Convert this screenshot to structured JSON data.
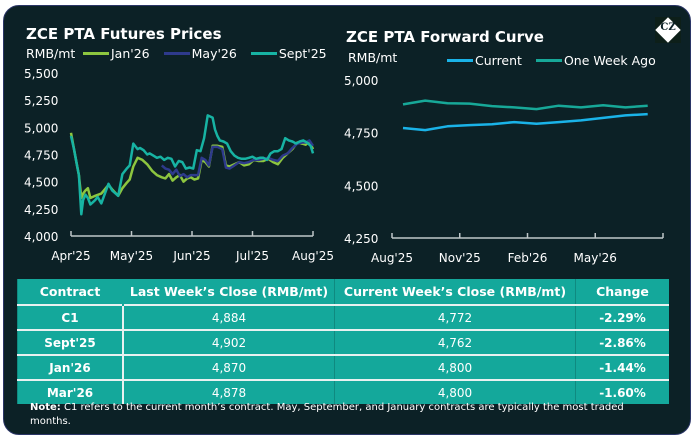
{
  "logo": {
    "text": "CZ"
  },
  "left_chart": {
    "title": "ZCE PTA Futures Prices",
    "unit": "RMB/mt"
  },
  "right_chart": {
    "title": "ZCE PTA Forward Curve",
    "unit": "RMB/mt"
  },
  "chart_data": [
    {
      "type": "line",
      "title": "ZCE PTA Futures Prices",
      "ylabel": "RMB/mt",
      "ylim": [
        4000,
        5500
      ],
      "yticks": [
        "4,000",
        "4,250",
        "4,500",
        "4,750",
        "5,000",
        "5,250",
        "5,500"
      ],
      "ytick_values": [
        4000,
        4250,
        4500,
        4750,
        5000,
        5250,
        5500
      ],
      "xticks": [
        "Apr'25",
        "May'25",
        "Jun'25",
        "Jul'25",
        "Aug'25"
      ],
      "xlim": [
        0,
        4
      ],
      "legend": "top",
      "grid": false,
      "series": [
        {
          "name": "Jan'26",
          "color": "#8dc63f",
          "x": [
            0.0,
            0.05,
            0.1,
            0.13,
            0.17,
            0.2,
            0.24,
            0.28,
            0.32,
            0.36,
            0.4,
            0.5,
            0.62,
            0.68,
            0.78,
            0.85,
            0.92,
            0.97,
            1.03,
            1.1,
            1.18,
            1.26,
            1.34,
            1.42,
            1.5,
            1.56,
            1.62,
            1.68,
            1.74,
            1.8,
            1.86,
            1.92,
            1.98,
            2.04,
            2.1,
            2.16,
            2.22,
            2.28,
            2.34,
            2.42,
            2.5,
            2.56,
            2.62,
            2.7,
            2.78,
            2.86,
            2.94,
            3.02,
            3.1,
            3.18,
            3.26,
            3.34,
            3.42,
            3.5,
            3.58,
            3.66,
            3.74,
            3.82,
            3.88,
            3.94,
            4.0
          ],
          "values": [
            4950,
            4800,
            4650,
            4560,
            4350,
            4390,
            4420,
            4440,
            4350,
            4360,
            4370,
            4390,
            4470,
            4430,
            4370,
            4440,
            4490,
            4520,
            4640,
            4720,
            4700,
            4660,
            4600,
            4560,
            4540,
            4530,
            4570,
            4510,
            4540,
            4560,
            4500,
            4530,
            4540,
            4520,
            4530,
            4700,
            4680,
            4640,
            4830,
            4830,
            4820,
            4650,
            4640,
            4660,
            4680,
            4650,
            4660,
            4700,
            4690,
            4690,
            4710,
            4680,
            4660,
            4720,
            4760,
            4800,
            4860,
            4850,
            4840,
            4870,
            4800
          ]
        },
        {
          "name": "May'26",
          "color": "#2e3a8c",
          "x": [
            1.5,
            1.56,
            1.62,
            1.68,
            1.74,
            1.8,
            1.86,
            1.92,
            1.98,
            2.04,
            2.1,
            2.16,
            2.22,
            2.28,
            2.34,
            2.42,
            2.5,
            2.56,
            2.62,
            2.7,
            2.78,
            2.86,
            2.94,
            3.02,
            3.1,
            3.18,
            3.26,
            3.34,
            3.42,
            3.5,
            3.58,
            3.66,
            3.74,
            3.82,
            3.88,
            3.94,
            4.0
          ],
          "values": [
            4650,
            4620,
            4610,
            4570,
            4610,
            4550,
            4570,
            4540,
            4560,
            4560,
            4560,
            4720,
            4700,
            4650,
            4820,
            4820,
            4800,
            4630,
            4620,
            4650,
            4680,
            4670,
            4680,
            4700,
            4700,
            4710,
            4720,
            4700,
            4690,
            4740,
            4760,
            4810,
            4850,
            4860,
            4860,
            4880,
            4830
          ]
        },
        {
          "name": "Sept'25",
          "color": "#17b3a3",
          "x": [
            0.0,
            0.05,
            0.1,
            0.13,
            0.17,
            0.2,
            0.24,
            0.28,
            0.32,
            0.36,
            0.4,
            0.44,
            0.5,
            0.62,
            0.68,
            0.78,
            0.85,
            0.92,
            0.97,
            1.03,
            1.1,
            1.14,
            1.2,
            1.26,
            1.3,
            1.36,
            1.42,
            1.48,
            1.54,
            1.6,
            1.66,
            1.72,
            1.78,
            1.84,
            1.9,
            1.96,
            2.02,
            2.08,
            2.14,
            2.2,
            2.26,
            2.3,
            2.34,
            2.38,
            2.42,
            2.46,
            2.52,
            2.58,
            2.64,
            2.7,
            2.76,
            2.82,
            2.88,
            2.94,
            3.0,
            3.06,
            3.12,
            3.18,
            3.24,
            3.3,
            3.36,
            3.42,
            3.48,
            3.54,
            3.6,
            3.66,
            3.72,
            3.78,
            3.84,
            3.9,
            3.96,
            4.0
          ],
          "values": [
            4920,
            4800,
            4650,
            4560,
            4200,
            4330,
            4380,
            4350,
            4290,
            4310,
            4330,
            4360,
            4300,
            4480,
            4420,
            4370,
            4570,
            4620,
            4650,
            4850,
            4800,
            4810,
            4790,
            4750,
            4760,
            4740,
            4720,
            4730,
            4700,
            4720,
            4710,
            4640,
            4690,
            4680,
            4620,
            4630,
            4620,
            4790,
            4780,
            4900,
            5110,
            5100,
            5090,
            4980,
            4920,
            4880,
            4870,
            4850,
            4780,
            4740,
            4720,
            4710,
            4710,
            4720,
            4730,
            4710,
            4720,
            4720,
            4700,
            4760,
            4780,
            4780,
            4800,
            4900,
            4880,
            4870,
            4850,
            4870,
            4880,
            4860,
            4830,
            4760
          ]
        }
      ]
    },
    {
      "type": "line",
      "title": "ZCE PTA Forward Curve",
      "ylabel": "RMB/mt",
      "ylim": [
        4250,
        5000
      ],
      "yticks": [
        "4,250",
        "4,500",
        "4,750",
        "5,000"
      ],
      "ytick_values": [
        4250,
        4500,
        4750,
        5000
      ],
      "xticks": [
        "Aug'25",
        "Nov'25",
        "Feb'26",
        "May'26"
      ],
      "x_categories": [
        "Aug'25",
        "Sep'25",
        "Oct'25",
        "Nov'25",
        "Dec'25",
        "Jan'26",
        "Feb'26",
        "Mar'26",
        "Apr'26",
        "May'26",
        "Jun'26",
        "Jul'26"
      ],
      "legend": "top",
      "grid": false,
      "series": [
        {
          "name": "Current",
          "color": "#1ab3e8",
          "values": [
            4772,
            4762,
            4780,
            4786,
            4790,
            4800,
            4792,
            4800,
            4808,
            4820,
            4832,
            4838
          ]
        },
        {
          "name": "One Week Ago",
          "color": "#17a898",
          "values": [
            4884,
            4902,
            4890,
            4888,
            4876,
            4870,
            4862,
            4878,
            4870,
            4880,
            4870,
            4878
          ]
        }
      ]
    }
  ],
  "table": {
    "headers": [
      "Contract",
      "Last Week’s Close (RMB/mt)",
      "Current Week’s Close (RMB/mt)",
      "Change"
    ],
    "rows": [
      [
        "C1",
        "4,884",
        "4,772",
        "-2.29%"
      ],
      [
        "Sept'25",
        "4,902",
        "4,762",
        "-2.86%"
      ],
      [
        "Jan'26",
        "4,870",
        "4,800",
        "-1.44%"
      ],
      [
        "Mar'26",
        "4,878",
        "4,800",
        "-1.60%"
      ]
    ]
  },
  "note": {
    "label": "Note:",
    "text": " C1 refers to the current month’s contract. May, September, and January contracts are typically the most traded months."
  }
}
